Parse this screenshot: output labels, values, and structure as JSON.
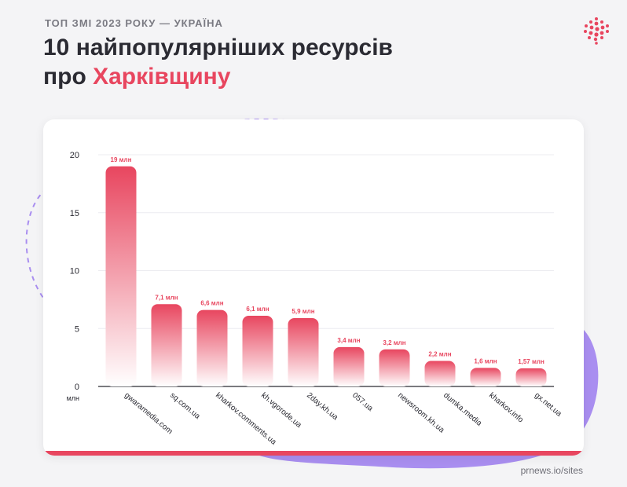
{
  "header": {
    "kicker": "ТОП ЗМІ 2023 РОКУ — УКРАЇНА",
    "title_line1": "10 найпопулярніших ресурсів",
    "title_line2_prefix": "про ",
    "title_line2_accent": "Харківщину"
  },
  "footer": {
    "source": "prnews.io/sites"
  },
  "colors": {
    "accent": "#e8465f",
    "text": "#2b2b33",
    "blob": "#a98ef0"
  },
  "chart_data": {
    "type": "bar",
    "categories": [
      "gwaramedia.com",
      "sq.com.ua",
      "kharkov.comments.ua",
      "kh.vgorode.ua",
      "2day.kh.ua",
      "057.ua",
      "newsroom.kh.ua",
      "dumka.media",
      "kharkov.info",
      "gx.net.ua"
    ],
    "values": [
      19,
      7.1,
      6.6,
      6.1,
      5.9,
      3.4,
      3.2,
      2.2,
      1.6,
      1.57
    ],
    "data_labels": [
      "19 млн",
      "7,1 млн",
      "6,6 млн",
      "6,1 млн",
      "5,9 млн",
      "3,4 млн",
      "3,2 млн",
      "2,2 млн",
      "1,6 млн",
      "1,57 млн"
    ],
    "yticks": [
      0,
      5,
      10,
      15,
      20
    ],
    "ylim": [
      0,
      20
    ],
    "yunit": "млн",
    "grid": true,
    "bar_gradient": [
      "#e8465f",
      "#ffffff"
    ]
  }
}
